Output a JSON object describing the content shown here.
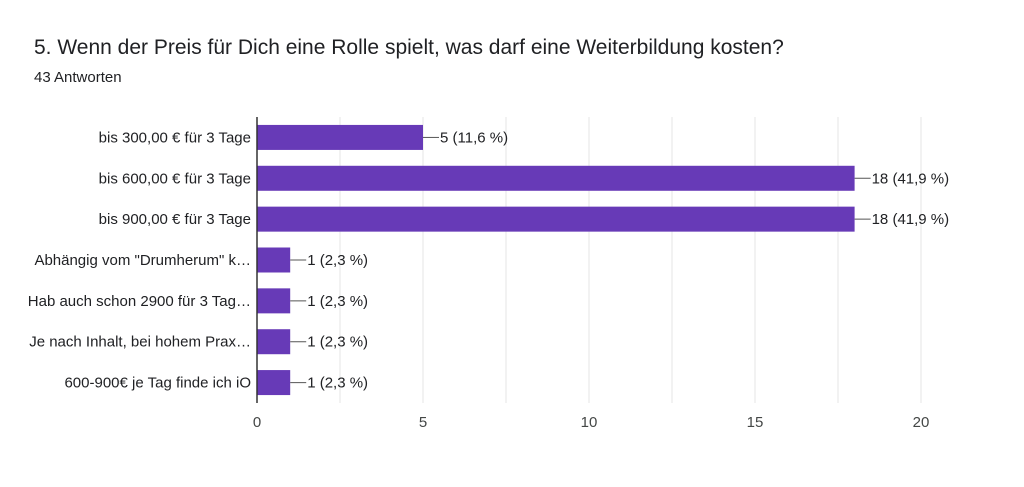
{
  "question": {
    "title": "5. Wenn der Preis für Dich eine Rolle spielt, was darf eine Weiterbildung kosten?",
    "responses": "43 Antworten"
  },
  "colors": {
    "bar": "#673ab7",
    "grid": "#e6e6e6",
    "axis": "#333333"
  },
  "chart_data": {
    "type": "bar",
    "orientation": "horizontal",
    "categories": [
      "bis 300,00 € für 3 Tage",
      "bis 600,00 € für 3 Tage",
      "bis 900,00 € für 3 Tage",
      "Abhängig vom \"Drumherum\" k…",
      "Hab auch schon 2900 für 3 Tag…",
      "Je nach Inhalt, bei hohem Prax…",
      "600-900€ je Tag finde ich iO"
    ],
    "values": [
      5,
      18,
      18,
      1,
      1,
      1,
      1
    ],
    "data_labels": [
      "5 (11,6 %)",
      "18 (41,9 %)",
      "18 (41,9 %)",
      "1 (2,3 %)",
      "1 (2,3 %)",
      "1 (2,3 %)",
      "1 (2,3 %)"
    ],
    "xlim": [
      0,
      20
    ],
    "xticks": [
      "0",
      "5",
      "10",
      "15",
      "20"
    ],
    "grid": true
  }
}
